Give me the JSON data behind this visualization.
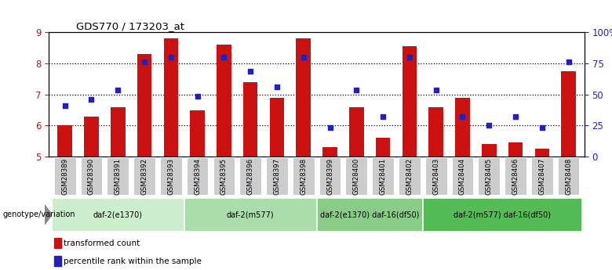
{
  "title": "GDS770 / 173203_at",
  "samples": [
    "GSM28389",
    "GSM28390",
    "GSM28391",
    "GSM28392",
    "GSM28393",
    "GSM28394",
    "GSM28395",
    "GSM28396",
    "GSM28397",
    "GSM28398",
    "GSM28399",
    "GSM28400",
    "GSM28401",
    "GSM28402",
    "GSM28403",
    "GSM28404",
    "GSM28405",
    "GSM28406",
    "GSM28407",
    "GSM28408"
  ],
  "bar_values": [
    6.0,
    6.3,
    6.6,
    8.3,
    8.8,
    6.5,
    8.6,
    7.4,
    6.9,
    8.8,
    5.3,
    6.6,
    5.6,
    8.55,
    6.6,
    6.9,
    5.4,
    5.45,
    5.25,
    7.75
  ],
  "dot_values_left_scale": [
    6.65,
    6.85,
    7.15,
    8.05,
    8.2,
    6.95,
    8.2,
    7.75,
    7.25,
    8.2,
    5.93,
    7.15,
    6.28,
    8.2,
    7.15,
    6.28,
    6.0,
    6.28,
    5.93,
    8.05
  ],
  "ylim_left": [
    5,
    9
  ],
  "ylim_right": [
    0,
    100
  ],
  "yticks_left": [
    5,
    6,
    7,
    8,
    9
  ],
  "yticks_right": [
    0,
    25,
    50,
    75,
    100
  ],
  "ytick_labels_right": [
    "0",
    "25",
    "50",
    "75",
    "100%"
  ],
  "bar_color": "#cc1111",
  "dot_color": "#2222bb",
  "bar_bottom": 5.0,
  "groups": [
    {
      "label": "daf-2(e1370)",
      "start": 0,
      "end": 4
    },
    {
      "label": "daf-2(m577)",
      "start": 5,
      "end": 9
    },
    {
      "label": "daf-2(e1370) daf-16(df50)",
      "start": 10,
      "end": 13
    },
    {
      "label": "daf-2(m577) daf-16(df50)",
      "start": 14,
      "end": 19
    }
  ],
  "group_colors": [
    "#cceecc",
    "#aaddaa",
    "#88cc88",
    "#55bb55"
  ],
  "genotype_label": "genotype/variation",
  "legend_items": [
    {
      "label": "transformed count",
      "color": "#cc1111"
    },
    {
      "label": "percentile rank within the sample",
      "color": "#2222bb"
    }
  ]
}
